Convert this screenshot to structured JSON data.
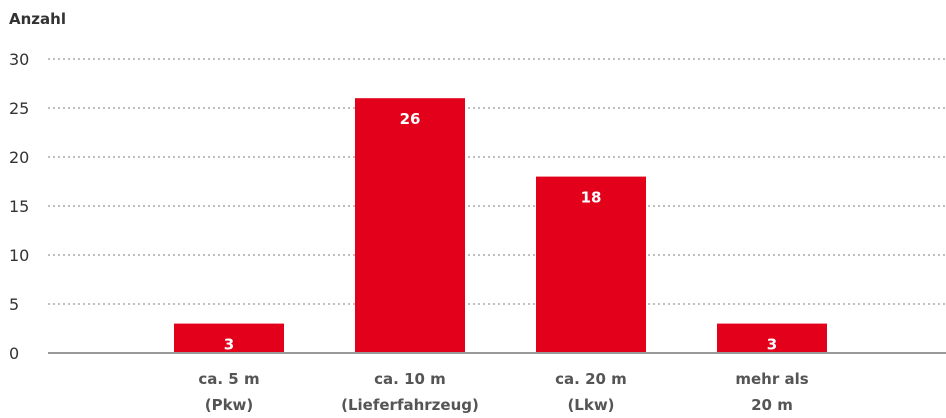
{
  "chart_data": {
    "type": "bar",
    "ylabel": "Anzahl",
    "xlabel": "",
    "categories": [
      [
        "ca. 5 m",
        "(Pkw)"
      ],
      [
        "ca. 10 m",
        "(Lieferfahrzeug)"
      ],
      [
        "ca. 20 m",
        "(Lkw)"
      ],
      [
        "mehr als",
        "20 m"
      ]
    ],
    "values": [
      3,
      26,
      18,
      3
    ],
    "ylim": [
      0,
      30
    ],
    "yticks": [
      0,
      5,
      10,
      15,
      20,
      25,
      30
    ],
    "grid": true,
    "data_labels": true,
    "bar_color": "#e2001a",
    "data_label_color": "#ffffff",
    "grid_color": "#999999",
    "axis_color": "#999999",
    "text_color": "#333333",
    "category_color": "#555555"
  }
}
